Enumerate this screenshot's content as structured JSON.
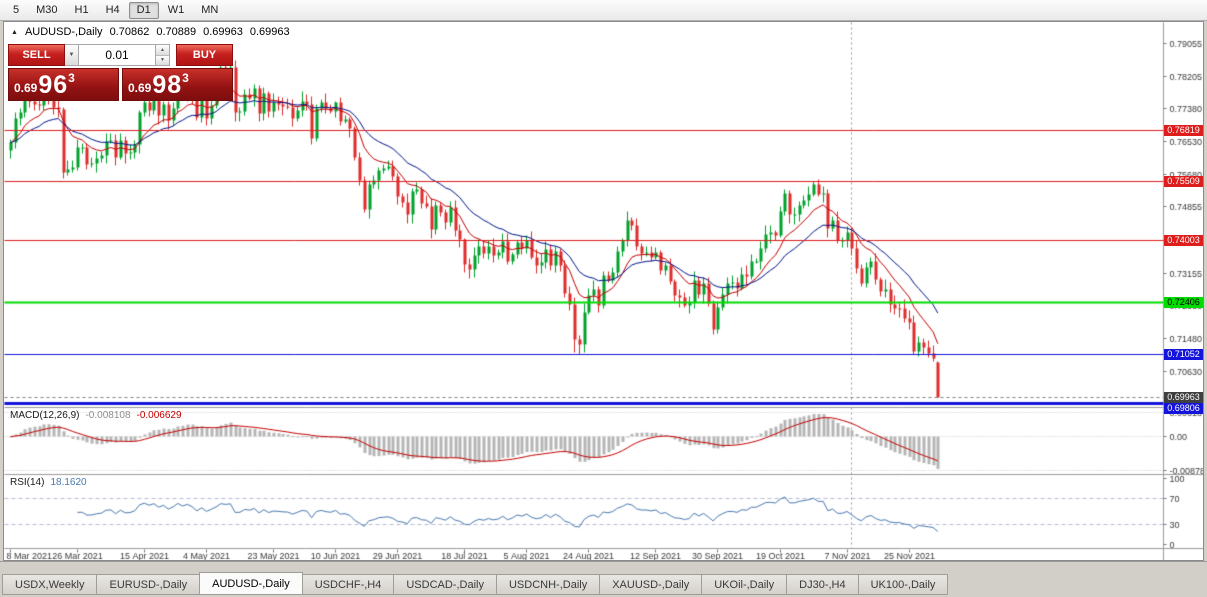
{
  "toolbar": {
    "timeframes": [
      "5",
      "M30",
      "H1",
      "H4",
      "D1",
      "W1",
      "MN"
    ],
    "active": "D1"
  },
  "icons": {
    "collapse": "▲",
    "dropdown": "▼",
    "spin_up": "▲",
    "spin_down": "▼"
  },
  "chart_header": {
    "symbol": "AUDUSD-,Daily",
    "open": "0.70862",
    "high": "0.70889",
    "low": "0.69963",
    "close": "0.69963"
  },
  "one_click": {
    "sell_label": "SELL",
    "buy_label": "BUY",
    "volume": "0.01",
    "sell_price": {
      "prefix": "0.69",
      "big": "96",
      "sup": "3"
    },
    "buy_price": {
      "prefix": "0.69",
      "big": "98",
      "sup": "3"
    }
  },
  "indicators": {
    "macd": {
      "name": "MACD(12,26,9)",
      "value_main": "-0.008108",
      "value_signal": "-0.006629"
    },
    "rsi": {
      "name": "RSI(14)",
      "value": "18.1620"
    }
  },
  "tabs": {
    "items": [
      "USDX,Weekly",
      "EURUSD-,Daily",
      "AUDUSD-,Daily",
      "USDCHF-,H4",
      "USDCAD-,Daily",
      "USDCNH-,Daily",
      "XAUUSD-,Daily",
      "UKOil-,Daily",
      "DJ30-,H4",
      "UK100-,Daily"
    ],
    "active_index": 2
  },
  "chart_data": {
    "type": "candlestick",
    "symbol": "AUDUSD-",
    "timeframe": "Daily",
    "closes": [
      0.765,
      0.7714,
      0.7729,
      0.7787,
      0.7756,
      0.775,
      0.7745,
      0.7798,
      0.7758,
      0.7741,
      0.7736,
      0.7575,
      0.7582,
      0.7586,
      0.7637,
      0.7638,
      0.7594,
      0.7597,
      0.761,
      0.7618,
      0.7654,
      0.7657,
      0.7612,
      0.7655,
      0.7622,
      0.7625,
      0.7646,
      0.7728,
      0.7755,
      0.7734,
      0.7758,
      0.7721,
      0.775,
      0.7707,
      0.7738,
      0.7796,
      0.7766,
      0.7795,
      0.7768,
      0.7716,
      0.7762,
      0.7713,
      0.7745,
      0.7783,
      0.7843,
      0.7834,
      0.7845,
      0.7727,
      0.773,
      0.7774,
      0.7764,
      0.779,
      0.7726,
      0.7776,
      0.7732,
      0.7754,
      0.775,
      0.7743,
      0.774,
      0.7713,
      0.7734,
      0.7757,
      0.775,
      0.7661,
      0.7739,
      0.7755,
      0.7738,
      0.773,
      0.7753,
      0.7706,
      0.771,
      0.7688,
      0.7612,
      0.7554,
      0.7478,
      0.7542,
      0.7554,
      0.7579,
      0.7585,
      0.759,
      0.7565,
      0.7512,
      0.7498,
      0.7466,
      0.7525,
      0.753,
      0.7494,
      0.7487,
      0.7428,
      0.7489,
      0.7471,
      0.7445,
      0.7483,
      0.7424,
      0.7401,
      0.7337,
      0.7324,
      0.736,
      0.7383,
      0.7365,
      0.7383,
      0.7361,
      0.7369,
      0.7396,
      0.7344,
      0.7362,
      0.7394,
      0.7378,
      0.74,
      0.7356,
      0.7335,
      0.7343,
      0.7376,
      0.7336,
      0.737,
      0.7336,
      0.7262,
      0.7234,
      0.7145,
      0.7133,
      0.7214,
      0.7257,
      0.7274,
      0.7232,
      0.731,
      0.7296,
      0.7316,
      0.737,
      0.74,
      0.745,
      0.7437,
      0.7385,
      0.7367,
      0.7369,
      0.7356,
      0.7369,
      0.7322,
      0.7334,
      0.7294,
      0.7258,
      0.7252,
      0.7232,
      0.7241,
      0.7297,
      0.726,
      0.7288,
      0.7237,
      0.717,
      0.7227,
      0.726,
      0.7288,
      0.7291,
      0.7277,
      0.7312,
      0.7306,
      0.7346,
      0.7346,
      0.7379,
      0.7415,
      0.7419,
      0.7413,
      0.7475,
      0.7519,
      0.7465,
      0.7465,
      0.749,
      0.7503,
      0.7518,
      0.7544,
      0.7518,
      0.752,
      0.743,
      0.745,
      0.74,
      0.74,
      0.742,
      0.7379,
      0.7327,
      0.729,
      0.733,
      0.7346,
      0.73,
      0.7268,
      0.7274,
      0.7235,
      0.7225,
      0.7224,
      0.72,
      0.7188,
      0.7113,
      0.7136,
      0.7125,
      0.711,
      0.7095,
      0.6996
    ],
    "last_ohlc": [
      0.70862,
      0.70889,
      0.69963,
      0.69963
    ],
    "wick_overrides": {
      "118": 0.7112,
      "119": 0.7106
    },
    "x_axis_labels": [
      {
        "text": "8 Mar 2021",
        "bar": 0
      },
      {
        "text": "26 Mar 2021",
        "bar": 14
      },
      {
        "text": "15 Apr 2021",
        "bar": 28
      },
      {
        "text": "4 May 2021",
        "bar": 41
      },
      {
        "text": "23 May 2021",
        "bar": 55
      },
      {
        "text": "10 Jun 2021",
        "bar": 68
      },
      {
        "text": "29 Jun 2021",
        "bar": 81
      },
      {
        "text": "18 Jul 2021",
        "bar": 95
      },
      {
        "text": "5 Aug 2021",
        "bar": 108
      },
      {
        "text": "24 Aug 2021",
        "bar": 121
      },
      {
        "text": "12 Sep 2021",
        "bar": 135
      },
      {
        "text": "30 Sep 2021",
        "bar": 148
      },
      {
        "text": "19 Oct 2021",
        "bar": 161
      },
      {
        "text": "7 Nov 2021",
        "bar": 175
      },
      {
        "text": "25 Nov 2021",
        "bar": 188
      }
    ],
    "y_axis_ticks": [
      "0.79055",
      "0.78205",
      "0.77380",
      "0.76530",
      "0.75680",
      "0.74855",
      "0.74005",
      "0.73155",
      "0.72330",
      "0.71480",
      "0.70630",
      "0.69780"
    ],
    "levels": [
      {
        "value": 0.76819,
        "label": "0.76819",
        "color": "#DE1D1D",
        "thickness": 1
      },
      {
        "value": 0.75509,
        "label": "0.75509",
        "color": "#DE1D1D",
        "thickness": 1
      },
      {
        "value": 0.74003,
        "label": "0.74003",
        "color": "#DE1D1D",
        "thickness": 1
      },
      {
        "value": 0.72406,
        "label": "0.72406",
        "color": "#00DC00",
        "text_color": "#000000",
        "thickness": 2
      },
      {
        "value": 0.71052,
        "label": "0.71052",
        "color": "#1414DC",
        "thickness": 1
      },
      {
        "value": 0.69806,
        "label": "0.69806",
        "color": "#1414DC",
        "thickness": 3
      }
    ],
    "bid": {
      "value": 0.69963,
      "label": "0.69963",
      "color": "#3F3F3F"
    },
    "macd_scale": [
      "0.00618",
      "0.00",
      "-0.00878"
    ],
    "rsi_scale": [
      "100",
      "70",
      "30",
      "0"
    ],
    "vline_bar": 176,
    "colors": {
      "candle_up": "#00A12C",
      "candle_down": "#DE2C2C",
      "ma_fast": "#C40000",
      "ma_slow": "#001489",
      "macd_hist": "#B6B6B6",
      "macd_signal": "#C40000",
      "rsi": "#4878B0",
      "grid": "#C8C8C8"
    }
  }
}
